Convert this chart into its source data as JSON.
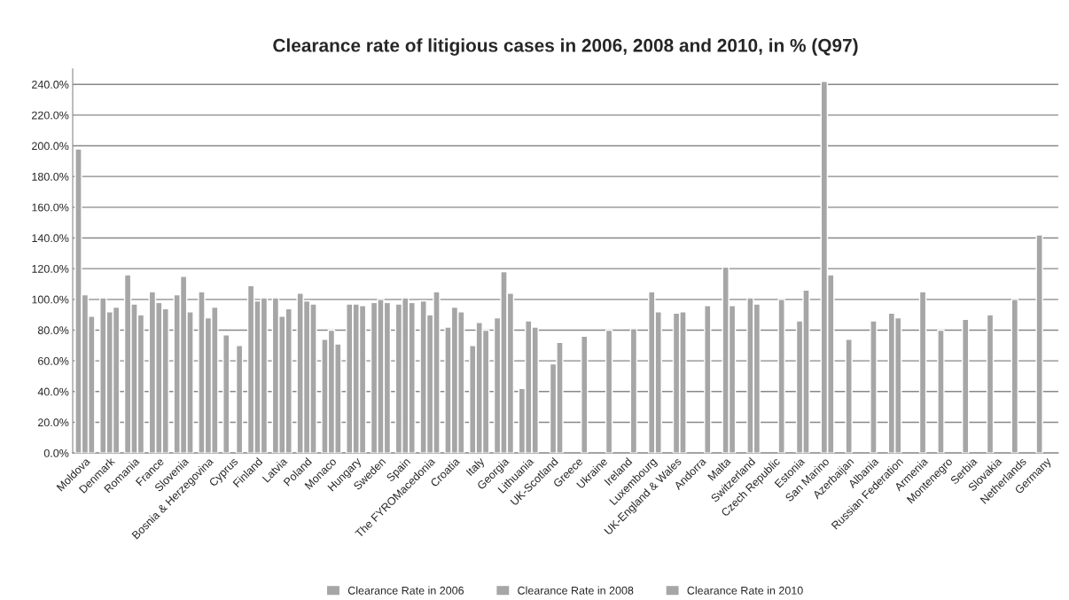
{
  "chart_data": {
    "type": "bar",
    "title": "Clearance rate of litigious cases in 2006, 2008 and 2010, in % (Q97)",
    "categories": [
      "Moldova",
      "Denmark",
      "Romania",
      "France",
      "Slovenia",
      "Bosnia & Herzegovina",
      "Cyprus",
      "Finland",
      "Latvia",
      "Poland",
      "Monaco",
      "Hungary",
      "Sweden",
      "Spain",
      "The FYROMacedonia",
      "Croatia",
      "Italy",
      "Georgia",
      "Lithuania",
      "UK-Scotland",
      "Greece",
      "Ukraine",
      "Ireland",
      "Luxembourg",
      "UK-England & Wales",
      "Andorra",
      "Malta",
      "Switzerland",
      "Czech Republic",
      "Estonia",
      "San Marino",
      "Azerbaijan",
      "Albania",
      "Russian Federation",
      "Armenia",
      "Montenegro",
      "Serbia",
      "Slovakia",
      "Netherlands",
      "Germany"
    ],
    "series": [
      {
        "name": "Clearance Rate in 2006",
        "color": "#a6a6a6",
        "values": [
          198,
          101,
          116,
          105,
          103,
          105,
          77,
          109,
          101,
          104,
          74,
          97,
          98,
          97,
          99,
          82,
          70,
          88,
          42,
          null,
          null,
          null,
          null,
          null,
          null,
          null,
          null,
          null,
          null,
          null,
          null,
          null,
          null,
          91,
          null,
          80,
          87,
          90,
          100,
          142
        ]
      },
      {
        "name": "Clearance Rate in 2008",
        "color": "#a6a6a6",
        "values": [
          103,
          92,
          97,
          98,
          115,
          88,
          null,
          99,
          89,
          99,
          80,
          97,
          100,
          101,
          90,
          95,
          85,
          118,
          86,
          58,
          null,
          null,
          null,
          105,
          91,
          null,
          121,
          101,
          null,
          86,
          242,
          74,
          86,
          88,
          105,
          null,
          null,
          null,
          null,
          null
        ]
      },
      {
        "name": "Clearance Rate in 2010",
        "color": "#a6a6a6",
        "values": [
          89,
          95,
          90,
          94,
          92,
          95,
          70,
          101,
          94,
          97,
          71,
          96,
          98,
          98,
          105,
          92,
          80,
          104,
          82,
          72,
          76,
          80,
          81,
          92,
          92,
          96,
          96,
          97,
          100,
          106,
          116,
          null,
          null,
          null,
          null,
          null,
          null,
          null,
          null,
          null
        ]
      }
    ],
    "ylim": [
      0,
      250
    ],
    "yticks": [
      {
        "value": 0,
        "label": "0.0%"
      },
      {
        "value": 20,
        "label": "20.0%"
      },
      {
        "value": 40,
        "label": "40.0%"
      },
      {
        "value": 60,
        "label": "60.0%"
      },
      {
        "value": 80,
        "label": "80.0%"
      },
      {
        "value": 100,
        "label": "100.0%"
      },
      {
        "value": 120,
        "label": "120.0%"
      },
      {
        "value": 140,
        "label": "140.0%"
      },
      {
        "value": 160,
        "label": "160.0%"
      },
      {
        "value": 180,
        "label": "180.0%"
      },
      {
        "value": 200,
        "label": "200.0%"
      },
      {
        "value": 220,
        "label": "220.0%"
      },
      {
        "value": 240,
        "label": "240.0%"
      }
    ],
    "grid": "y",
    "legend": "bottom"
  }
}
